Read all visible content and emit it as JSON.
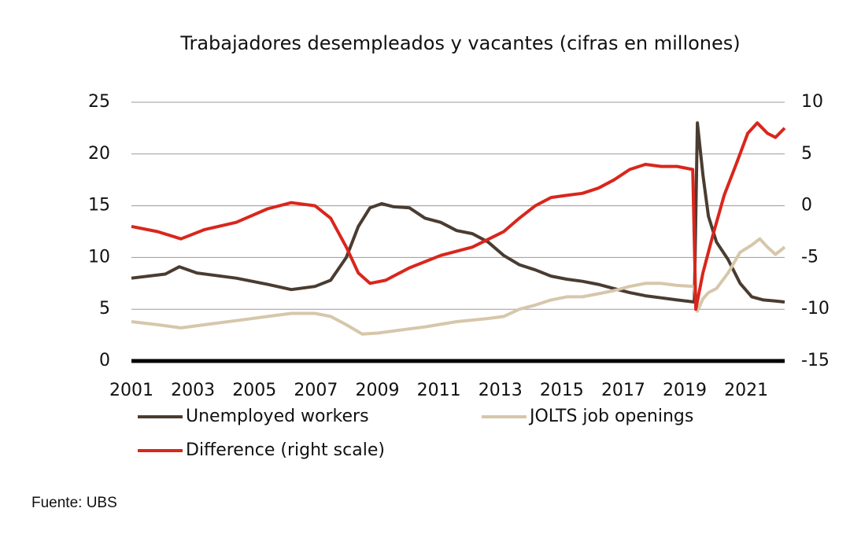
{
  "chart_data": {
    "type": "line",
    "title": "Trabajadores desempleados y vacantes (cifras en millones)",
    "source": "Fuente: UBS",
    "xlim": [
      2001,
      2022.25
    ],
    "xticks": [
      2001,
      2003,
      2005,
      2007,
      2009,
      2011,
      2013,
      2015,
      2017,
      2019,
      2021
    ],
    "ylim": [
      0,
      25
    ],
    "yticks": [
      0,
      5,
      10,
      15,
      20,
      25
    ],
    "y2lim": [
      -15,
      10
    ],
    "y2ticks": [
      -15,
      -10,
      -5,
      0,
      5,
      10
    ],
    "grid": true,
    "legend": "bottom",
    "series": [
      {
        "name": "Unemployed workers",
        "color": "#4a3c31",
        "x": [
          2001.0,
          2002.1,
          2002.56,
          2003.13,
          2004.41,
          2005.43,
          2006.2,
          2006.97,
          2007.48,
          2007.99,
          2008.38,
          2008.76,
          2009.14,
          2009.53,
          2010.04,
          2010.55,
          2011.06,
          2011.58,
          2012.09,
          2012.6,
          2013.11,
          2013.62,
          2014.14,
          2014.65,
          2015.16,
          2015.67,
          2016.19,
          2016.7,
          2017.21,
          2017.72,
          2018.23,
          2018.75,
          2019.31,
          2019.41,
          2019.59,
          2019.77,
          2020.03,
          2020.41,
          2020.8,
          2021.18,
          2021.56,
          2021.95,
          2022.25
        ],
        "values": [
          8.0,
          8.4,
          9.1,
          8.5,
          8.0,
          7.4,
          6.9,
          7.2,
          7.8,
          10.0,
          13.0,
          14.8,
          15.2,
          14.9,
          14.8,
          13.8,
          13.4,
          12.6,
          12.3,
          11.5,
          10.2,
          9.3,
          8.8,
          8.2,
          7.9,
          7.7,
          7.4,
          7.0,
          6.6,
          6.3,
          6.1,
          5.9,
          5.7,
          23.0,
          18.0,
          14.0,
          11.5,
          9.8,
          7.5,
          6.2,
          5.9,
          5.8,
          5.7
        ]
      },
      {
        "name": "JOLTS job openings",
        "color": "#d6c7ab",
        "x": [
          2001.0,
          2001.85,
          2002.61,
          2003.38,
          2004.41,
          2005.43,
          2006.2,
          2006.97,
          2007.48,
          2007.99,
          2008.51,
          2009.02,
          2009.53,
          2010.55,
          2011.58,
          2012.6,
          2013.11,
          2013.62,
          2014.14,
          2014.65,
          2015.16,
          2015.67,
          2016.19,
          2016.7,
          2017.21,
          2017.72,
          2018.23,
          2018.75,
          2019.31,
          2019.41,
          2019.59,
          2019.77,
          2020.03,
          2020.41,
          2020.8,
          2021.18,
          2021.44,
          2021.69,
          2021.95,
          2022.25
        ],
        "values": [
          3.8,
          3.5,
          3.2,
          3.5,
          3.9,
          4.3,
          4.6,
          4.6,
          4.3,
          3.5,
          2.6,
          2.7,
          2.9,
          3.3,
          3.8,
          4.1,
          4.3,
          5.0,
          5.4,
          5.9,
          6.2,
          6.2,
          6.5,
          6.8,
          7.2,
          7.5,
          7.5,
          7.3,
          7.2,
          4.8,
          6.0,
          6.6,
          7.0,
          8.5,
          10.5,
          11.2,
          11.8,
          11.0,
          10.3,
          11.0
        ]
      },
      {
        "name": "Difference (right scale)",
        "color": "#d9261c",
        "axis": "y2",
        "x": [
          2001.0,
          2001.85,
          2002.61,
          2003.38,
          2004.41,
          2005.43,
          2006.2,
          2006.97,
          2007.48,
          2007.99,
          2008.38,
          2008.76,
          2009.27,
          2010.04,
          2011.06,
          2012.09,
          2013.11,
          2013.62,
          2014.14,
          2014.65,
          2015.16,
          2015.67,
          2016.19,
          2016.7,
          2017.21,
          2017.72,
          2018.23,
          2018.75,
          2019.26,
          2019.36,
          2019.59,
          2019.9,
          2020.28,
          2020.67,
          2021.05,
          2021.36,
          2021.69,
          2021.95,
          2022.25
        ],
        "values": [
          -2.0,
          -2.5,
          -3.2,
          -2.3,
          -1.6,
          -0.3,
          0.3,
          0.0,
          -1.2,
          -4.0,
          -6.5,
          -7.5,
          -7.2,
          -6.0,
          -4.8,
          -4.0,
          -2.5,
          -1.2,
          0.0,
          0.8,
          1.0,
          1.2,
          1.7,
          2.5,
          3.5,
          4.0,
          3.8,
          3.8,
          3.5,
          -10.0,
          -6.5,
          -3.0,
          1.0,
          4.0,
          7.0,
          8.0,
          7.0,
          6.6,
          7.5
        ]
      }
    ]
  }
}
